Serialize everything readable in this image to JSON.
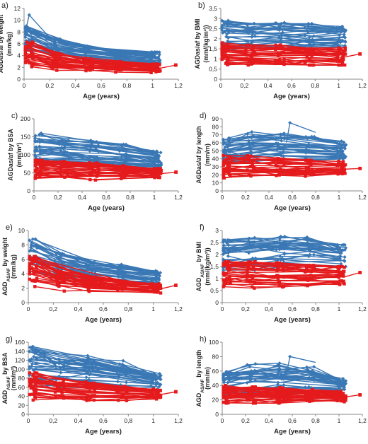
{
  "colors": {
    "blue": "#3a78b5",
    "red": "#e41a1c",
    "axis": "#888888"
  },
  "chart_data": [
    {
      "panel_label": "a)",
      "type": "line",
      "ylabel": "AGDas/af by weight",
      "yunit": "(mm/kg)",
      "xlabel": "Age (years)",
      "xlim": [
        0,
        1.2
      ],
      "ylim": [
        0,
        12
      ],
      "xticks": [
        "0",
        "0,2",
        "0,4",
        "0,6",
        "0,8",
        "1",
        "1,2"
      ],
      "yticks": [
        "0",
        "2",
        "4",
        "6",
        "8",
        "10",
        "12"
      ],
      "series": [
        {
          "marker": "diamond",
          "color": "#3a78b5",
          "x": [
            0.03,
            0.25,
            0.5,
            0.75,
            1.02
          ],
          "range_low": [
            4.6,
            3.6,
            2.9,
            2.6,
            2.4
          ],
          "range_high": [
            9.0,
            6.8,
            5.6,
            5.0,
            4.6
          ],
          "peak": {
            "x": 0.04,
            "y": 10.9
          }
        },
        {
          "marker": "square",
          "color": "#e41a1c",
          "x": [
            0.03,
            0.25,
            0.5,
            0.75,
            1.02
          ],
          "range_low": [
            2.0,
            1.5,
            1.3,
            1.2,
            1.1
          ],
          "range_high": [
            6.3,
            4.3,
            3.4,
            3.0,
            2.6
          ],
          "last_point": {
            "x": 1.18,
            "y": 2.4
          }
        }
      ]
    },
    {
      "panel_label": "b)",
      "type": "line",
      "ylabel": "AGDas/af by BMI",
      "yunit": "(mm/(kg/m²))",
      "xlabel": "Age (years)",
      "xlim": [
        0,
        1.2
      ],
      "ylim": [
        0,
        3.5
      ],
      "xticks": [
        "0",
        "0,2",
        "0,4",
        "0,6",
        "0,8",
        "1",
        "1,2"
      ],
      "yticks": [
        "0",
        "0,5",
        "1",
        "1,5",
        "2",
        "2,5",
        "3",
        "3,5"
      ],
      "series": [
        {
          "marker": "diamond",
          "color": "#3a78b5",
          "x": [
            0.03,
            0.25,
            0.5,
            0.75,
            1.02
          ],
          "range_low": [
            1.4,
            1.5,
            1.5,
            1.55,
            1.6
          ],
          "range_high": [
            2.9,
            2.75,
            2.8,
            2.75,
            2.65
          ]
        },
        {
          "marker": "square",
          "color": "#e41a1c",
          "x": [
            0.03,
            0.25,
            0.5,
            0.75,
            1.02
          ],
          "range_low": [
            0.7,
            0.7,
            0.7,
            0.7,
            0.7
          ],
          "range_high": [
            1.8,
            1.7,
            1.7,
            1.6,
            1.55
          ],
          "last_point": {
            "x": 1.18,
            "y": 1.25
          }
        }
      ]
    },
    {
      "panel_label": "c)",
      "type": "line",
      "ylabel": "AGDas/af by BSA",
      "yunit": "(mm/m²)",
      "xlabel": "Age (years)",
      "xlim": [
        0,
        1.2
      ],
      "ylim": [
        0,
        200
      ],
      "xticks": [
        "0",
        "0,2",
        "0,4",
        "0,6",
        "0,8",
        "1",
        "1,2"
      ],
      "yticks": [
        "0",
        "50",
        "100",
        "150",
        "200"
      ],
      "series": [
        {
          "marker": "diamond",
          "color": "#3a78b5",
          "x": [
            0.03,
            0.25,
            0.5,
            0.75,
            1.02
          ],
          "range_low": [
            75,
            72,
            70,
            68,
            66
          ],
          "range_high": [
            160,
            150,
            140,
            130,
            110
          ]
        },
        {
          "marker": "square",
          "color": "#e41a1c",
          "x": [
            0.03,
            0.25,
            0.5,
            0.75,
            1.02
          ],
          "range_low": [
            30,
            35,
            30,
            33,
            35
          ],
          "range_high": [
            85,
            82,
            78,
            70,
            62
          ],
          "last_point": {
            "x": 1.18,
            "y": 52
          }
        }
      ]
    },
    {
      "panel_label": "d)",
      "type": "line",
      "ylabel": "AGDas/af by length",
      "yunit": "(mm/m)",
      "xlabel": "Age (years)",
      "xlim": [
        0,
        1.2
      ],
      "ylim": [
        0,
        90
      ],
      "xticks": [
        "0",
        "0,2",
        "0,4",
        "0,6",
        "0,8",
        "1",
        "1,2"
      ],
      "yticks": [
        "0",
        "10",
        "20",
        "30",
        "40",
        "50",
        "60",
        "70",
        "80",
        "90"
      ],
      "series": [
        {
          "marker": "diamond",
          "color": "#3a78b5",
          "x": [
            0.03,
            0.25,
            0.5,
            0.75,
            1.02
          ],
          "range_low": [
            35,
            36,
            37,
            38,
            40
          ],
          "range_high": [
            67,
            77,
            73,
            70,
            62
          ],
          "peak": {
            "x": 0.58,
            "y": 85
          }
        },
        {
          "marker": "square",
          "color": "#e41a1c",
          "x": [
            0.03,
            0.25,
            0.5,
            0.75,
            1.02
          ],
          "range_low": [
            16,
            18,
            17,
            18,
            19
          ],
          "range_high": [
            44,
            44,
            41,
            40,
            37
          ],
          "last_point": {
            "x": 1.18,
            "y": 28
          }
        }
      ]
    },
    {
      "panel_label": "e)",
      "type": "line",
      "ylabel": "AGD_AS/AF by weight",
      "yunit": "(mm/kg)",
      "xlabel": "Age (years)",
      "xlim": [
        0,
        1.2
      ],
      "ylim": [
        0,
        10
      ],
      "xticks": [
        "0",
        "0,2",
        "0,4",
        "0,6",
        "0,8",
        "1",
        "1,2"
      ],
      "yticks": [
        "0",
        "2",
        "4",
        "6",
        "8",
        "10"
      ],
      "series": [
        {
          "marker": "diamond",
          "color": "#3a78b5",
          "x": [
            0.03,
            0.25,
            0.5,
            0.75,
            1.02
          ],
          "range_low": [
            4.3,
            3.3,
            2.8,
            2.5,
            2.4
          ],
          "range_high": [
            8.8,
            6.8,
            5.6,
            5.3,
            4.4
          ]
        },
        {
          "marker": "square",
          "color": "#e41a1c",
          "x": [
            0.03,
            0.25,
            0.5,
            0.75,
            1.02
          ],
          "range_low": [
            2.1,
            1.6,
            1.4,
            1.3,
            1.2
          ],
          "range_high": [
            6.4,
            4.5,
            3.6,
            3.0,
            2.6
          ],
          "last_point": {
            "x": 1.18,
            "y": 2.4
          }
        }
      ]
    },
    {
      "panel_label": "f)",
      "type": "line",
      "ylabel": "AGD_AS/AF by BMI",
      "yunit": "(mm/(kg/m²))",
      "xlabel": "Age (years)",
      "xlim": [
        0,
        1.2
      ],
      "ylim": [
        0,
        3
      ],
      "xticks": [
        "0",
        "0,2",
        "0,4",
        "0,6",
        "0,8",
        "1",
        "1,2"
      ],
      "yticks": [
        "0",
        "0,5",
        "1",
        "1,5",
        "2",
        "2,5",
        "3"
      ],
      "series": [
        {
          "marker": "diamond",
          "color": "#3a78b5",
          "x": [
            0.03,
            0.25,
            0.5,
            0.75,
            1.02
          ],
          "range_low": [
            1.3,
            1.35,
            1.4,
            1.45,
            1.5
          ],
          "range_high": [
            2.6,
            2.7,
            2.75,
            2.75,
            2.4
          ]
        },
        {
          "marker": "square",
          "color": "#e41a1c",
          "x": [
            0.03,
            0.25,
            0.5,
            0.75,
            1.02
          ],
          "range_low": [
            0.6,
            0.6,
            0.6,
            0.65,
            0.7
          ],
          "range_high": [
            1.7,
            1.7,
            1.65,
            1.55,
            1.5
          ],
          "last_point": {
            "x": 1.18,
            "y": 1.25
          }
        }
      ]
    },
    {
      "panel_label": "g)",
      "type": "line",
      "ylabel": "AGD_AS/AF by BSA",
      "yunit": "(mm/m²)",
      "xlabel": "Age (years)",
      "xlim": [
        0,
        1.2
      ],
      "ylim": [
        0,
        160
      ],
      "xticks": [
        "0",
        "0,2",
        "0,4",
        "0,6",
        "0,8",
        "1",
        "1,2"
      ],
      "yticks": [
        "0",
        "20",
        "40",
        "60",
        "80",
        "100",
        "120",
        "140",
        "160"
      ],
      "series": [
        {
          "marker": "diamond",
          "color": "#3a78b5",
          "x": [
            0.03,
            0.25,
            0.5,
            0.75,
            1.02
          ],
          "range_low": [
            62,
            60,
            58,
            56,
            56
          ],
          "range_high": [
            150,
            130,
            130,
            120,
            90
          ]
        },
        {
          "marker": "square",
          "color": "#e41a1c",
          "x": [
            0.03,
            0.25,
            0.5,
            0.75,
            1.02
          ],
          "range_low": [
            30,
            30,
            28,
            30,
            32
          ],
          "range_high": [
            92,
            78,
            72,
            62,
            56
          ],
          "last_point": {
            "x": 1.18,
            "y": 50
          }
        }
      ]
    },
    {
      "panel_label": "h)",
      "type": "line",
      "ylabel": "AGD_AS/AF by length",
      "yunit": "(mm/m)",
      "xlabel": "Age (years)",
      "xlim": [
        0,
        1.2
      ],
      "ylim": [
        0,
        100
      ],
      "xticks": [
        "0",
        "0,2",
        "0,4",
        "0,6",
        "0,8",
        "1",
        "1,2"
      ],
      "yticks": [
        "0",
        "20",
        "40",
        "60",
        "80",
        "100"
      ],
      "series": [
        {
          "marker": "diamond",
          "color": "#3a78b5",
          "x": [
            0.03,
            0.25,
            0.5,
            0.75,
            1.02
          ],
          "range_low": [
            28,
            30,
            30,
            31,
            32
          ],
          "range_high": [
            62,
            70,
            72,
            68,
            50
          ],
          "peak": {
            "x": 0.58,
            "y": 80
          }
        },
        {
          "marker": "square",
          "color": "#e41a1c",
          "x": [
            0.03,
            0.25,
            0.5,
            0.75,
            1.02
          ],
          "range_low": [
            14,
            15,
            15,
            16,
            17
          ],
          "range_high": [
            40,
            38,
            37,
            35,
            32
          ],
          "last_point": {
            "x": 1.18,
            "y": 27
          }
        }
      ]
    }
  ]
}
